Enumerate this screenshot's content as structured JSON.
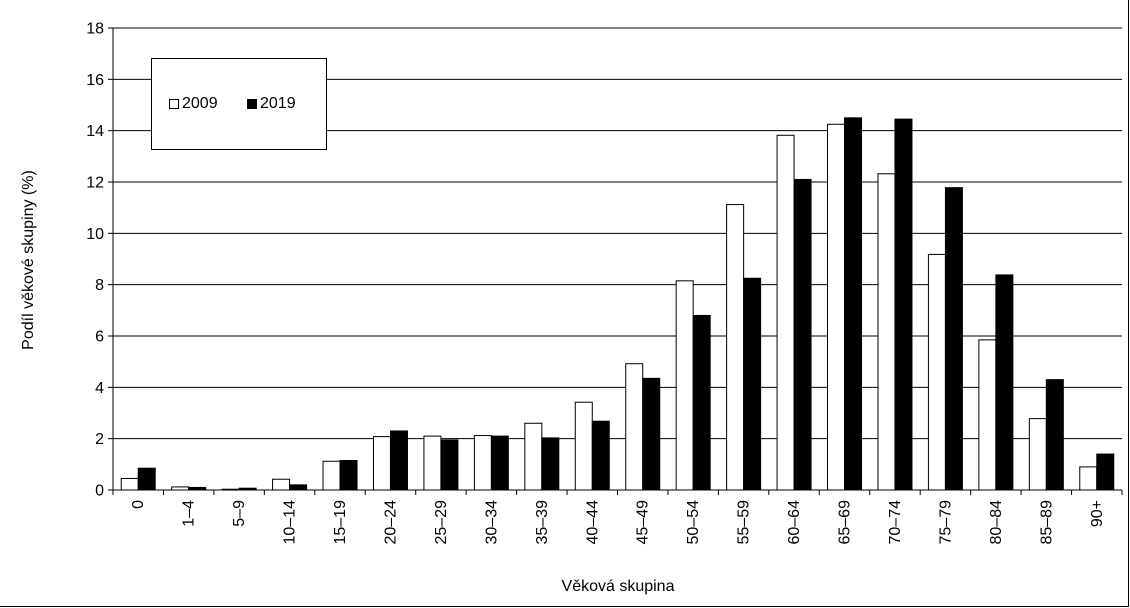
{
  "chart_data": {
    "type": "bar",
    "title": "",
    "xlabel": "Věková skupina",
    "ylabel": "Podíl věkové skupiny (%)",
    "ylim": [
      0,
      18
    ],
    "yticks": [
      0,
      2,
      4,
      6,
      8,
      10,
      12,
      14,
      16,
      18
    ],
    "grid": true,
    "legend_position": "top-left",
    "categories": [
      "0",
      "1–4",
      "5–9",
      "10–14",
      "15–19",
      "20–24",
      "25–29",
      "30–34",
      "35–39",
      "40–44",
      "45–49",
      "50–54",
      "55–59",
      "60–64",
      "65–69",
      "70–74",
      "75–79",
      "80–84",
      "85–89",
      "90+"
    ],
    "series": [
      {
        "name": "2009",
        "color": "#ffffff",
        "values": [
          0.45,
          0.12,
          0.03,
          0.42,
          1.12,
          2.08,
          2.1,
          2.12,
          2.6,
          3.42,
          4.92,
          8.15,
          11.12,
          13.82,
          14.25,
          12.32,
          9.18,
          5.85,
          2.78,
          0.9
        ]
      },
      {
        "name": "2019",
        "color": "#000000",
        "values": [
          0.85,
          0.1,
          0.07,
          0.2,
          1.15,
          2.3,
          1.95,
          2.1,
          2.03,
          2.68,
          4.35,
          6.8,
          8.25,
          12.1,
          14.5,
          14.45,
          11.78,
          8.38,
          4.3,
          1.4
        ]
      }
    ]
  }
}
